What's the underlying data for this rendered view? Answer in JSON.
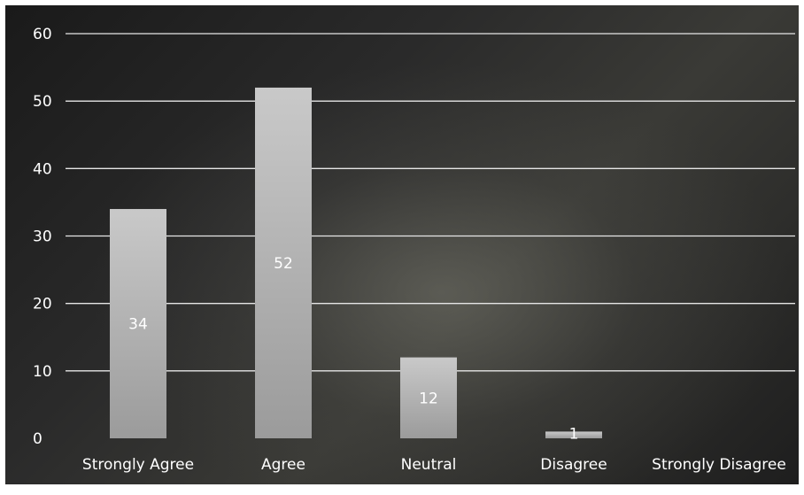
{
  "chart_data": {
    "type": "bar",
    "title": "",
    "xlabel": "",
    "ylabel": "",
    "categories": [
      "Strongly Agree",
      "Agree",
      "Neutral",
      "Disagree",
      "Strongly Disagree"
    ],
    "values": [
      34,
      52,
      12,
      1,
      0
    ],
    "data_labels": [
      "34",
      "52",
      "12",
      "1",
      ""
    ],
    "ylim": [
      0,
      60
    ],
    "yticks": [
      0,
      10,
      20,
      30,
      40,
      50,
      60
    ],
    "grid": true,
    "legend": "none",
    "colors": {
      "bar_top": "#c9c9c9",
      "bar_bottom": "#9b9b9b",
      "gridline": "#e6e6e6",
      "text": "#ffffff",
      "background": "#2a2a2a"
    }
  }
}
